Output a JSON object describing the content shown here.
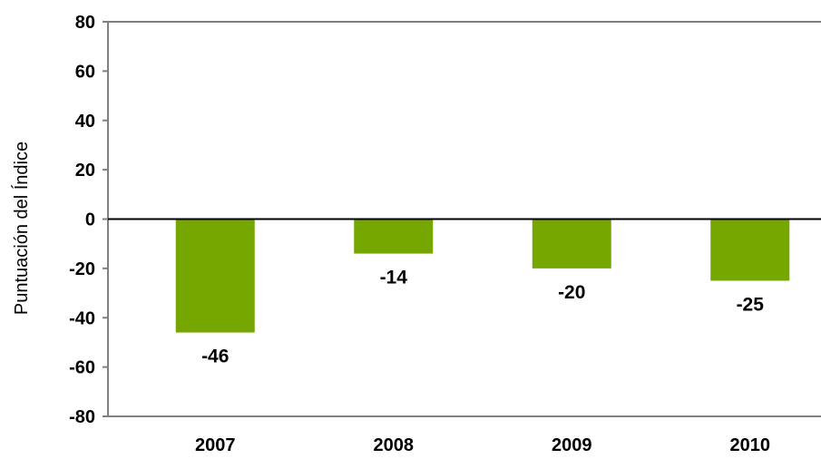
{
  "chart_data": {
    "type": "bar",
    "title": "",
    "xlabel": "",
    "ylabel": "Puntuación del Índice",
    "categories": [
      "2007",
      "2008",
      "2009",
      "2010"
    ],
    "values": [
      -46,
      -14,
      -20,
      -25
    ],
    "data_labels": [
      "-46",
      "-14",
      "-20",
      "-25"
    ],
    "ylim": [
      -80,
      80
    ],
    "yticks": [
      80,
      60,
      40,
      20,
      0,
      -20,
      -40,
      -60,
      -80
    ],
    "grid": false,
    "legend": "none",
    "bar_color": "#76a600"
  }
}
